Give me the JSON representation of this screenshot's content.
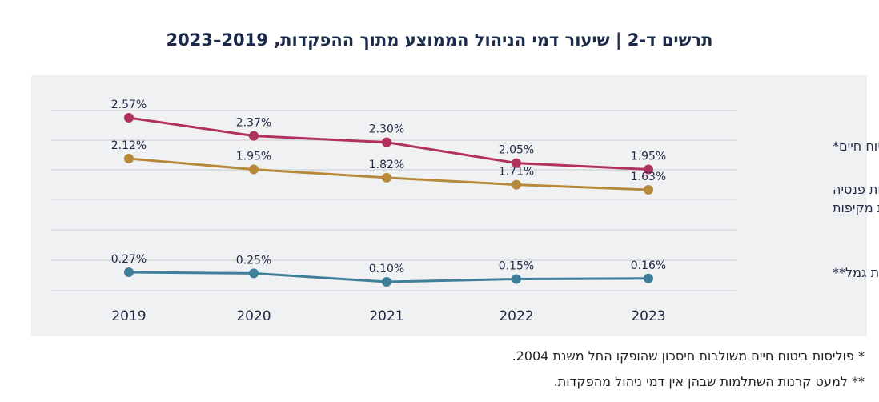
{
  "title": "תרשים ד-2 | שיעור דמי הניהול הממוצע מתוך ההפקדות, 2019–2023",
  "footnotes": [
    "* פוליסות ביטוח חיים משולבות חיסכון שהופקו החל משנת 2004.",
    "** למעט קרנות השתלמות שבהן אין דמי ניהול מהפקדות."
  ],
  "chart_data": {
    "type": "line",
    "title": "תרשים ד-2 | שיעור דמי הניהול הממוצע מתוך ההפקדות, 2019–2023",
    "x": [
      "2019",
      "2020",
      "2021",
      "2022",
      "2023"
    ],
    "grid": true,
    "series": [
      {
        "name": "ביטוח חיים*",
        "name_lines": [
          "ביטוח חיים*"
        ],
        "color": "#b2325f",
        "values": [
          2.57,
          2.37,
          2.3,
          2.05,
          1.95
        ],
        "labels": [
          "2.57%",
          "2.37%",
          "2.30%",
          "2.05%",
          "1.95%"
        ]
      },
      {
        "name": "קרנות פנסיה חדשות מקיפות",
        "name_lines": [
          "קרנות פנסיה",
          "חדשות מקיפות"
        ],
        "color": "#b7893a",
        "values": [
          2.12,
          1.95,
          1.82,
          1.71,
          1.63
        ],
        "labels": [
          "2.12%",
          "1.95%",
          "1.82%",
          "1.71%",
          "1.63%"
        ]
      },
      {
        "name": "קופות גמל**",
        "name_lines": [
          "קופות גמל**"
        ],
        "color": "#3f7f9a",
        "values": [
          0.27,
          0.25,
          0.1,
          0.15,
          0.16
        ],
        "labels": [
          "0.27%",
          "0.25%",
          "0.10%",
          "0.15%",
          "0.16%"
        ]
      }
    ]
  }
}
